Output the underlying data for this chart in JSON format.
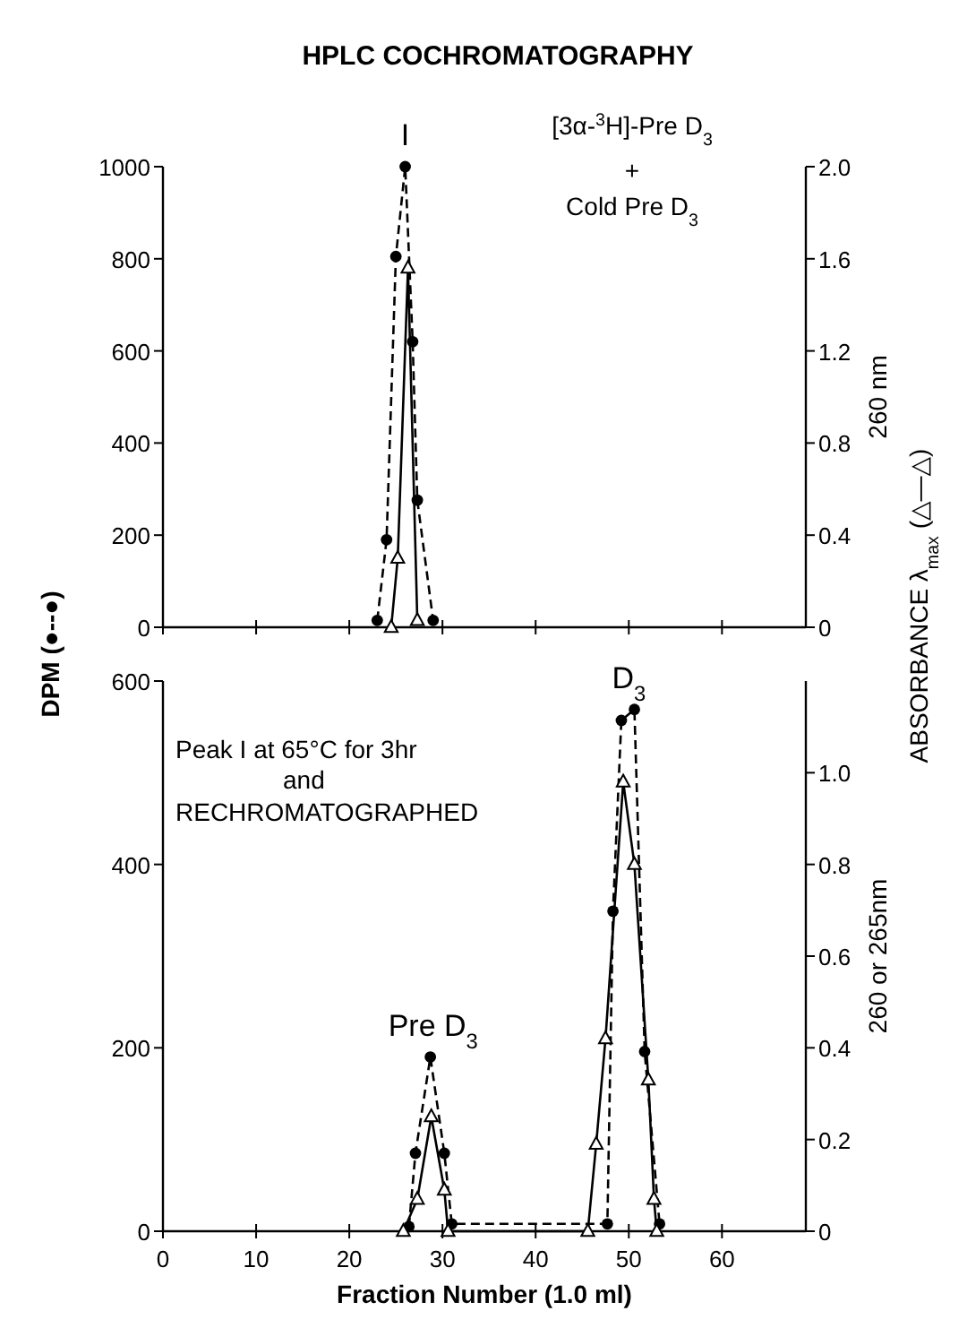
{
  "chart_data": [
    {
      "type": "line",
      "title": "HPLC COCHROMATOGRAPHY",
      "ylabel": "DPM (●--●)",
      "y2label": "260 nm",
      "xlim": [
        0,
        69
      ],
      "xticks": [
        0,
        10,
        20,
        30,
        40,
        50,
        60
      ],
      "ylim": [
        0,
        1000
      ],
      "yticks": [
        0,
        200,
        400,
        600,
        800,
        1000
      ],
      "y2lim": [
        0,
        2
      ],
      "y2ticks": [
        0,
        {
          "value": 0.4,
          "label": "0.4"
        },
        {
          "value": 0.8,
          "label": "0.8"
        },
        {
          "value": 1.2,
          "label": "1.2"
        },
        {
          "value": 1.6,
          "label": "1.6"
        },
        {
          "value": 2,
          "label": "2.0"
        }
      ],
      "tick_labels": "y",
      "grid": false,
      "series": [
        {
          "color": "#000000",
          "line_style": "dashed",
          "marker": "circle",
          "x": [
            23,
            24,
            25,
            26,
            26.8,
            27.3,
            29
          ],
          "values": [
            15,
            190,
            805,
            1000,
            620,
            276,
            15
          ]
        },
        {
          "color": "#000000",
          "line_style": "solid",
          "marker": "triangle",
          "axis": "y2",
          "x": [
            24.5,
            25.2,
            26.3,
            27.3
          ],
          "values": [
            0,
            0.3,
            1.56,
            0.03
          ]
        }
      ],
      "annotations": [
        "[3α-$^{3}$H]-Pre D$_{3}$",
        "+",
        "Cold Pre D$_{3}$",
        "ABSORBANCE λ$_{max}$ (△—△)",
        {
          "text": "I",
          "x": 26,
          "y": 1000
        }
      ]
    },
    {
      "type": "line",
      "xlabel": "Fraction Number (1.0 ml)",
      "y2label": "260 or 265nm",
      "xlim": [
        0,
        69
      ],
      "xticks": [
        0,
        10,
        20,
        30,
        40,
        50,
        60
      ],
      "ylim": [
        0,
        600
      ],
      "yticks": [
        0,
        200,
        400,
        600
      ],
      "y2lim": [
        0,
        1.2
      ],
      "y2ticks": [
        0,
        {
          "value": 0.2,
          "label": "0.2"
        },
        {
          "value": 0.4,
          "label": "0.4"
        },
        {
          "value": 0.6,
          "label": "0.6"
        },
        {
          "value": 0.8,
          "label": "0.8"
        },
        {
          "value": 1,
          "label": "1.0"
        }
      ],
      "grid": false,
      "series": [
        {
          "color": "#000000",
          "line_style": "dashed",
          "marker": "circle",
          "x": [
            26.4,
            27.1,
            28.7,
            30.2,
            31,
            47.7,
            48.3,
            49.2,
            50.6,
            51.7,
            53.3
          ],
          "values": [
            5,
            85,
            190,
            85,
            8,
            8,
            349,
            557,
            569,
            196,
            8
          ]
        },
        {
          "color": "#000000",
          "line_style": "solid",
          "marker": "triangle",
          "axis": "y2",
          "x": [
            25.8,
            27.3,
            28.8,
            30.2,
            30.6,
            45.6,
            46.5,
            47.5,
            49.4,
            50.6,
            52.1,
            52.7,
            53
          ],
          "values": [
            0,
            0.07,
            0.25,
            0.09,
            0,
            0,
            0.19,
            0.42,
            0.98,
            0.8,
            0.33,
            0.07,
            0
          ]
        }
      ],
      "annotations": [
        "Peak I at 65°C for 3hr",
        "and",
        "RECHROMATOGRAPHED",
        {
          "text": "Pre D$_{3}$",
          "x": 29,
          "y": 190
        },
        {
          "text": "D$_{3}$",
          "x": 50,
          "y": 569
        }
      ]
    }
  ]
}
